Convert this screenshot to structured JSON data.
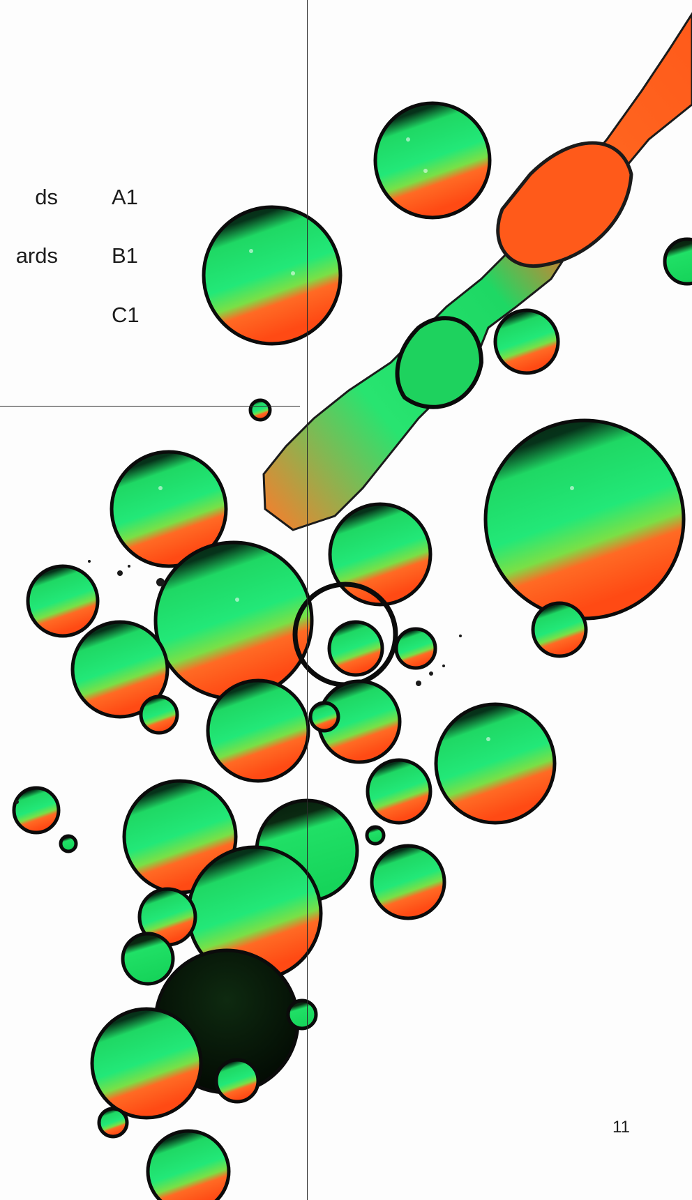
{
  "index": [
    {
      "label": "ds",
      "code": "A1"
    },
    {
      "label": "ards",
      "code": "B1"
    },
    {
      "label": "",
      "code": "C1"
    }
  ],
  "page_number": "11",
  "colors": {
    "background": "#fdfdfd",
    "rule": "#2a2a2a",
    "text": "#1c1c1c",
    "green": "#12e46a",
    "orange": "#ff5a1f",
    "dark": "#0b1a0c"
  }
}
